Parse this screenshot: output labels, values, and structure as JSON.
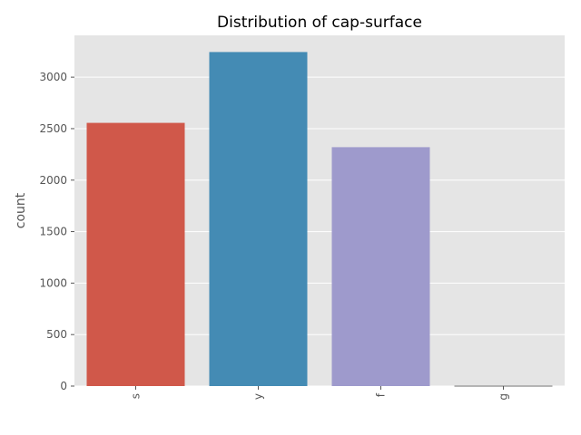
{
  "chart_data": {
    "type": "bar",
    "title": "Distribution of cap-surface",
    "xlabel": "",
    "ylabel": "count",
    "categories": [
      "s",
      "y",
      "f",
      "g"
    ],
    "values": [
      2556,
      3244,
      2320,
      4
    ],
    "ylim": [
      0,
      3406
    ],
    "yticks": [
      0,
      500,
      1000,
      1500,
      2000,
      2500,
      3000
    ],
    "grid": true,
    "colors": [
      "#d0584a",
      "#448bb4",
      "#9e9acc",
      "#777777"
    ],
    "background": "#e5e5e5"
  }
}
